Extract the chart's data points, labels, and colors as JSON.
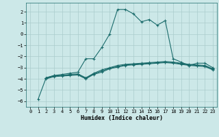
{
  "xlabel": "Humidex (Indice chaleur)",
  "ylabel": "",
  "bg_color": "#cce8e8",
  "grid_color": "#aacccc",
  "line_color": "#1a6b6b",
  "marker": "+",
  "xlim": [
    -0.5,
    23.5
  ],
  "ylim": [
    -6.5,
    2.8
  ],
  "yticks": [
    -6,
    -5,
    -4,
    -3,
    -2,
    -1,
    0,
    1,
    2
  ],
  "xticks": [
    0,
    1,
    2,
    3,
    4,
    5,
    6,
    7,
    8,
    9,
    10,
    11,
    12,
    13,
    14,
    15,
    16,
    17,
    18,
    19,
    20,
    21,
    22,
    23
  ],
  "series": [
    [
      null,
      -5.8,
      -3.9,
      -3.7,
      -3.6,
      -3.5,
      -3.4,
      -2.2,
      -2.2,
      -1.2,
      0.0,
      2.2,
      2.2,
      1.8,
      1.1,
      1.3,
      0.8,
      1.2,
      -2.2,
      -2.5,
      -2.8,
      -2.6,
      -2.6,
      -3.0
    ],
    [
      null,
      null,
      -3.9,
      -3.7,
      -3.7,
      -3.6,
      -3.55,
      -3.9,
      -3.5,
      -3.2,
      -3.0,
      -2.8,
      -2.7,
      -2.65,
      -2.6,
      -2.55,
      -2.5,
      -2.45,
      -2.5,
      -2.6,
      -2.7,
      -2.75,
      -2.8,
      -3.1
    ],
    [
      null,
      null,
      -3.95,
      -3.75,
      -3.7,
      -3.65,
      -3.6,
      -3.95,
      -3.55,
      -3.3,
      -3.05,
      -2.9,
      -2.75,
      -2.7,
      -2.65,
      -2.6,
      -2.55,
      -2.5,
      -2.55,
      -2.65,
      -2.75,
      -2.8,
      -2.85,
      -3.15
    ],
    [
      null,
      null,
      -4.0,
      -3.8,
      -3.75,
      -3.7,
      -3.65,
      -4.0,
      -3.6,
      -3.4,
      -3.1,
      -2.95,
      -2.8,
      -2.75,
      -2.7,
      -2.65,
      -2.6,
      -2.55,
      -2.6,
      -2.7,
      -2.8,
      -2.85,
      -2.9,
      -3.2
    ]
  ]
}
